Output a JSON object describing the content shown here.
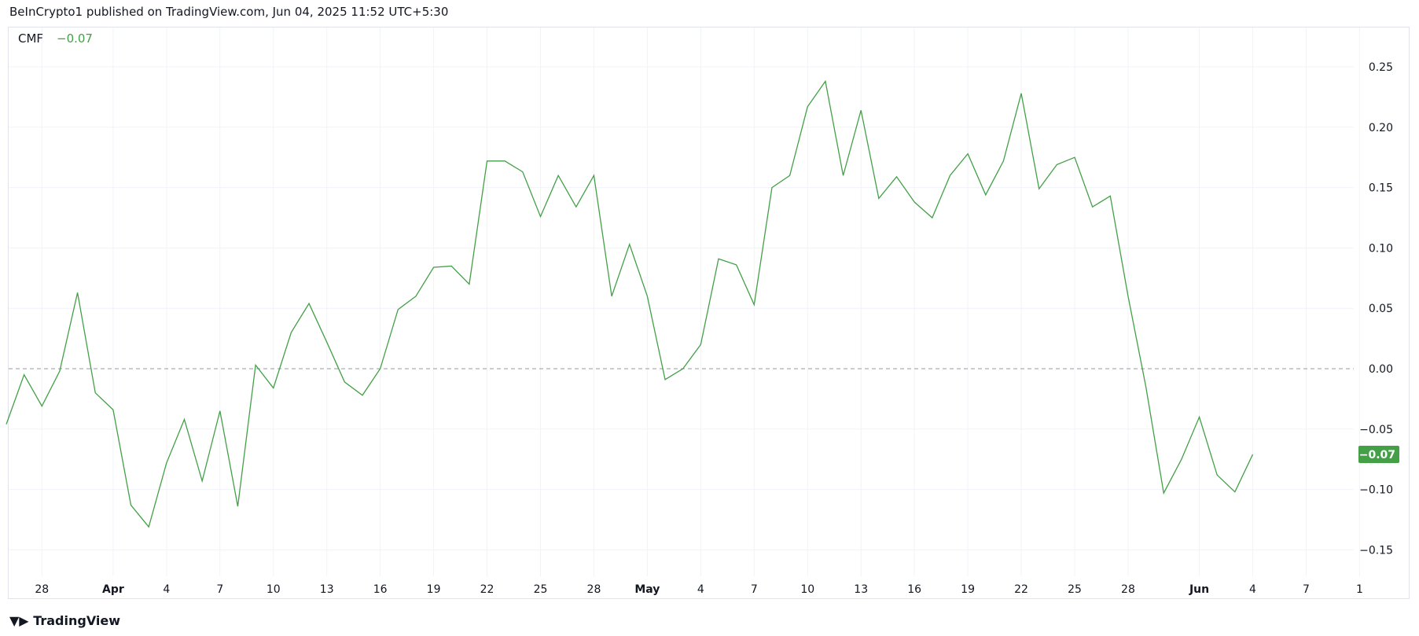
{
  "header": {
    "attribution": "BeInCrypto1 published on TradingView.com, Jun 04, 2025 11:52 UTC+5:30"
  },
  "legend": {
    "name": "CMF",
    "value": "−0.07"
  },
  "branding": {
    "logo_text": "TradingView"
  },
  "colors": {
    "line": "#43a047",
    "grid": "#f0f3fa",
    "zero_line": "#9598a1"
  },
  "chart_data": {
    "type": "line",
    "title": "",
    "series": [
      {
        "name": "CMF",
        "color": "#43a047",
        "x": [
          "Mar 26",
          "Mar 27",
          "Mar 28",
          "Mar 29",
          "Mar 30",
          "Mar 31",
          "Apr 1",
          "Apr 2",
          "Apr 3",
          "Apr 4",
          "Apr 5",
          "Apr 6",
          "Apr 7",
          "Apr 8",
          "Apr 9",
          "Apr 10",
          "Apr 11",
          "Apr 12",
          "Apr 13",
          "Apr 14",
          "Apr 15",
          "Apr 16",
          "Apr 17",
          "Apr 18",
          "Apr 19",
          "Apr 20",
          "Apr 21",
          "Apr 22",
          "Apr 23",
          "Apr 24",
          "Apr 25",
          "Apr 26",
          "Apr 27",
          "Apr 28",
          "Apr 29",
          "Apr 30",
          "May 1",
          "May 2",
          "May 3",
          "May 4",
          "May 5",
          "May 6",
          "May 7",
          "May 8",
          "May 9",
          "May 10",
          "May 11",
          "May 12",
          "May 13",
          "May 14",
          "May 15",
          "May 16",
          "May 17",
          "May 18",
          "May 19",
          "May 20",
          "May 21",
          "May 22",
          "May 23",
          "May 24",
          "May 25",
          "May 26",
          "May 27",
          "May 28",
          "May 29",
          "May 30",
          "May 31",
          "Jun 1",
          "Jun 2",
          "Jun 3",
          "Jun 4"
        ],
        "values": [
          -0.046,
          -0.005,
          -0.031,
          -0.002,
          0.063,
          -0.02,
          -0.034,
          -0.113,
          -0.131,
          -0.078,
          -0.042,
          -0.093,
          -0.035,
          -0.114,
          0.003,
          -0.016,
          0.03,
          0.054,
          0.022,
          -0.011,
          -0.022,
          0.0,
          0.049,
          0.06,
          0.084,
          0.085,
          0.07,
          0.172,
          0.172,
          0.163,
          0.126,
          0.16,
          0.134,
          0.16,
          0.06,
          0.103,
          0.06,
          -0.009,
          0.0,
          0.02,
          0.091,
          0.086,
          0.053,
          0.15,
          0.16,
          0.217,
          0.238,
          0.16,
          0.214,
          0.141,
          0.159,
          0.138,
          0.125,
          0.16,
          0.178,
          0.144,
          0.172,
          0.228,
          0.149,
          0.169,
          0.175,
          0.134,
          0.143,
          0.06,
          -0.015,
          -0.103,
          -0.075,
          -0.04,
          -0.088,
          -0.102,
          -0.071
        ]
      }
    ],
    "last_value_label": "−0.07",
    "ylim": [
      -0.17,
      0.28
    ],
    "y_ticks": [
      "0.25",
      "0.20",
      "0.15",
      "0.10",
      "0.05",
      "0.00",
      "−0.05",
      "−0.10",
      "−0.15"
    ],
    "x_ticks": [
      {
        "label": "28",
        "day": 2,
        "bold": false
      },
      {
        "label": "Apr",
        "day": 6,
        "bold": true
      },
      {
        "label": "4",
        "day": 9
      },
      {
        "label": "7",
        "day": 12
      },
      {
        "label": "10",
        "day": 15
      },
      {
        "label": "13",
        "day": 18
      },
      {
        "label": "16",
        "day": 21
      },
      {
        "label": "19",
        "day": 24
      },
      {
        "label": "22",
        "day": 27
      },
      {
        "label": "25",
        "day": 30
      },
      {
        "label": "28",
        "day": 33
      },
      {
        "label": "May",
        "day": 36,
        "bold": true
      },
      {
        "label": "4",
        "day": 39
      },
      {
        "label": "7",
        "day": 42
      },
      {
        "label": "10",
        "day": 45
      },
      {
        "label": "13",
        "day": 48
      },
      {
        "label": "16",
        "day": 51
      },
      {
        "label": "19",
        "day": 54
      },
      {
        "label": "22",
        "day": 57
      },
      {
        "label": "25",
        "day": 60
      },
      {
        "label": "28",
        "day": 63
      },
      {
        "label": "Jun",
        "day": 67,
        "bold": true
      },
      {
        "label": "4",
        "day": 70
      },
      {
        "label": "7",
        "day": 73
      },
      {
        "label": "1",
        "day": 76
      }
    ],
    "zero_line": "dashed",
    "grid": true
  }
}
